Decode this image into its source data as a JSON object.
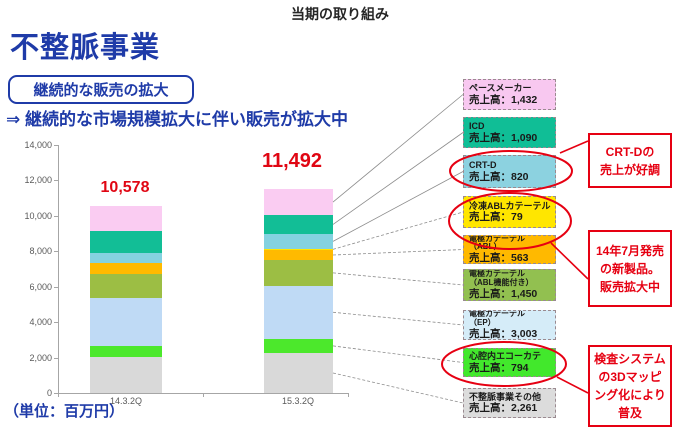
{
  "header": {
    "slide_title": "当期の取り組み",
    "section_title": "不整脈事業",
    "badge": "継続的な販売の拡大",
    "statement": "⇒ 継続的な市場規模拡大に伴い販売が拡大中"
  },
  "footer": {
    "unit_label": "（単位：百万円）"
  },
  "colors": {
    "blue": "#1f3ba8",
    "red": "#e60012",
    "axis": "#a6a6a6",
    "connector": "#8c8c8c"
  },
  "chart_data": {
    "type": "bar",
    "subtype": "stacked",
    "categories": [
      "14.3.2Q",
      "15.3.2Q"
    ],
    "totals": [
      10578,
      11492
    ],
    "total_labels": [
      "10,578",
      "11,492"
    ],
    "ylabel": "",
    "xlabel": "",
    "unit": "百万円",
    "ylim": [
      0,
      14000
    ],
    "ytick_interval": 2000,
    "ytick_labels": [
      "0",
      "2,000",
      "4,000",
      "6,000",
      "8,000",
      "10,000",
      "12,000",
      "14,000"
    ],
    "grid": false,
    "series_bottom_to_top": [
      {
        "name": "不整脈事業その他",
        "color": "#d9d9d9",
        "values": [
          2028,
          2261
        ]
      },
      {
        "name": "心腔内エコーカテ",
        "color": "#4ce82c",
        "values": [
          610,
          794
        ]
      },
      {
        "name": "電極カテーテル（EP）",
        "color": "#bfdaf5",
        "values": [
          2740,
          3003
        ]
      },
      {
        "name": "電極カテーテル（ABL機能付き）",
        "color": "#9cbe44",
        "values": [
          1330,
          1450
        ]
      },
      {
        "name": "電極カテーテル（ABL）",
        "color": "#ffba00",
        "values": [
          620,
          563
        ]
      },
      {
        "name": "冷凍ABLカテーテル",
        "color": "#ffe600",
        "values": [
          0,
          79
        ]
      },
      {
        "name": "CRT-D",
        "color": "#84d2e0",
        "values": [
          600,
          820
        ]
      },
      {
        "name": "ICD",
        "color": "#12be96",
        "values": [
          1230,
          1090
        ]
      },
      {
        "name": "ペースメーカー",
        "color": "#faccf2",
        "values": [
          1420,
          1432
        ]
      }
    ]
  },
  "legend_boxes": [
    {
      "name_lines": [
        "ペースメーカー"
      ],
      "value": "売上高：1,432",
      "bg": "#f8c8f0"
    },
    {
      "name_lines": [
        "ICD"
      ],
      "value": "売上高：1,090",
      "bg": "#10be96"
    },
    {
      "name_lines": [
        "CRT-D"
      ],
      "value": "売上高：820",
      "bg": "#8cd2e0"
    },
    {
      "name_lines": [
        "冷凍ABLカテーテル"
      ],
      "value": "売上高：79",
      "bg": "#ffe600"
    },
    {
      "name_lines": [
        "電極カテーテル",
        "（ABL）"
      ],
      "value": "売上高：563",
      "bg": "#ffb900"
    },
    {
      "name_lines": [
        "電極カテーテル",
        "（ABL機能付き）"
      ],
      "value": "売上高：1,450",
      "bg": "#92c050"
    },
    {
      "name_lines": [
        "電極カテーテル",
        "（EP）"
      ],
      "value": "売上高：3,003",
      "bg": "#d5ecf8"
    },
    {
      "name_lines": [
        "心腔内エコーカテ"
      ],
      "value": "売上高：794",
      "bg": "#42e82c"
    },
    {
      "name_lines": [
        "不整脈事業その他"
      ],
      "value": "売上高：2,261",
      "bg": "#dcdcdc"
    }
  ],
  "callouts": [
    {
      "lines": [
        "CRT-Dの",
        "売上が好調"
      ]
    },
    {
      "lines": [
        "14年7月発売",
        "の新製品。",
        "販売拡大中"
      ]
    },
    {
      "lines": [
        "検査システム",
        "の3Dマッピ",
        "ング化により",
        "普及"
      ]
    }
  ]
}
